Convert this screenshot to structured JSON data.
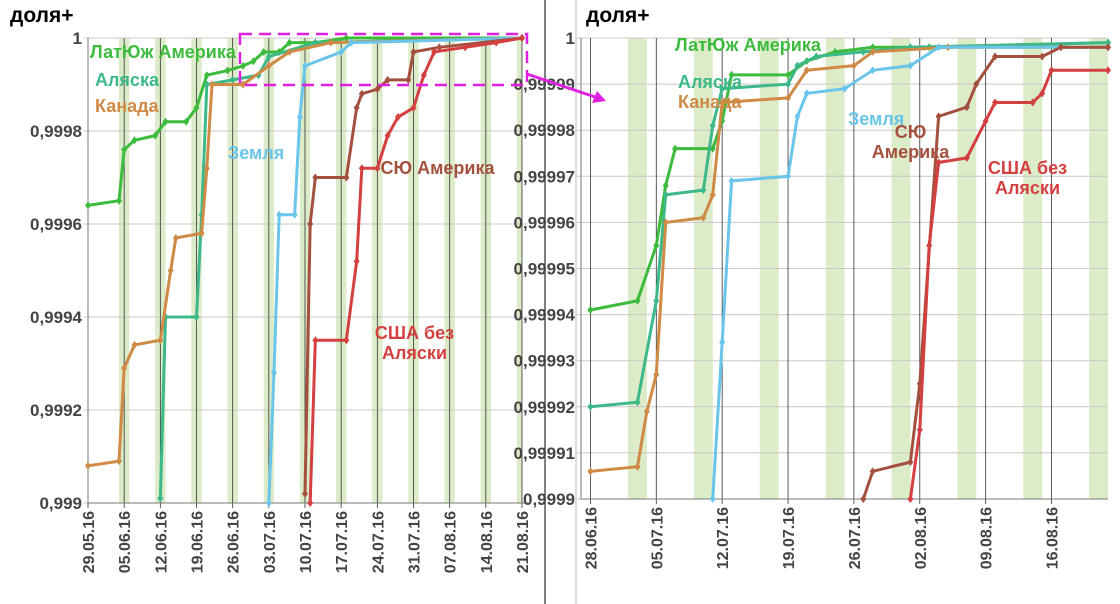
{
  "chart_data": [
    {
      "type": "line",
      "ylabel": "доля+",
      "xlim": [
        "2016-05-29",
        "2016-08-21"
      ],
      "ylim": [
        0.999,
        1
      ],
      "yticks": [
        {
          "value": 0.999,
          "label": "0,999"
        },
        {
          "value": 0.9992,
          "label": "0,9992"
        },
        {
          "value": 0.9994,
          "label": "0,9994"
        },
        {
          "value": 0.9996,
          "label": "0,9996"
        },
        {
          "value": 0.9998,
          "label": "0,9998"
        },
        1
      ],
      "xticks": [
        {
          "value": "2016-05-29",
          "label": "29.05.16"
        },
        {
          "value": "2016-06-05",
          "label": "05.06.16"
        },
        {
          "value": "2016-06-12",
          "label": "12.06.16"
        },
        {
          "value": "2016-06-19",
          "label": "19.06.16"
        },
        {
          "value": "2016-06-26",
          "label": "26.06.16"
        },
        {
          "value": "2016-07-03",
          "label": "03.07.16"
        },
        {
          "value": "2016-07-10",
          "label": "10.07.16"
        },
        {
          "value": "2016-07-17",
          "label": "17.07.16"
        },
        {
          "value": "2016-07-24",
          "label": "24.07.16"
        },
        {
          "value": "2016-07-31",
          "label": "31.07.16"
        },
        {
          "value": "2016-08-07",
          "label": "07.08.16"
        },
        {
          "value": "2016-08-14",
          "label": "14.08.16"
        },
        {
          "value": "2016-08-21",
          "label": "21.08.16"
        }
      ],
      "grid": true,
      "series": [
        {
          "name": "ЛатЮж Америка",
          "color": "#3dbb3d",
          "x": [
            "2016-05-29",
            "2016-06-04",
            "2016-06-05",
            "2016-06-07",
            "2016-06-11",
            "2016-06-13",
            "2016-06-17",
            "2016-06-19",
            "2016-06-21",
            "2016-06-25",
            "2016-06-28",
            "2016-06-30",
            "2016-07-02",
            "2016-07-05",
            "2016-07-07",
            "2016-07-12",
            "2016-07-18",
            "2016-08-21"
          ],
          "values": [
            0.99964,
            0.99965,
            0.99976,
            0.99978,
            0.99979,
            0.99982,
            0.99982,
            0.99985,
            0.99992,
            0.99993,
            0.99994,
            0.99995,
            0.99997,
            0.99997,
            0.99999,
            0.99999,
            1.0,
            1.0
          ]
        },
        {
          "name": "Аляска",
          "color": "#3db888",
          "x": [
            "2016-06-12",
            "2016-06-13",
            "2016-06-19",
            "2016-06-20",
            "2016-06-21",
            "2016-06-26",
            "2016-07-01",
            "2016-07-03",
            "2016-07-12",
            "2016-08-21"
          ],
          "values": [
            0.99901,
            0.9994,
            0.9994,
            0.99962,
            0.9999,
            0.99991,
            0.99992,
            0.99996,
            0.99999,
            1.0
          ]
        },
        {
          "name": "Канада",
          "color": "#cf8a45",
          "x": [
            "2016-05-29",
            "2016-06-04",
            "2016-06-05",
            "2016-06-07",
            "2016-06-12",
            "2016-06-14",
            "2016-06-15",
            "2016-06-20",
            "2016-06-21",
            "2016-06-22",
            "2016-06-28",
            "2016-07-03",
            "2016-07-07",
            "2016-07-15",
            "2016-08-21"
          ],
          "values": [
            0.99908,
            0.99909,
            0.99929,
            0.99934,
            0.99935,
            0.9995,
            0.99957,
            0.99958,
            0.99972,
            0.9999,
            0.9999,
            0.99994,
            0.99997,
            0.99999,
            1.0
          ]
        },
        {
          "name": "Земля",
          "color": "#6ac5ea",
          "x": [
            "2016-07-03",
            "2016-07-04",
            "2016-07-05",
            "2016-07-08",
            "2016-07-09",
            "2016-07-10",
            "2016-07-17",
            "2016-07-19",
            "2016-08-21"
          ],
          "values": [
            0.999,
            0.99928,
            0.99962,
            0.99962,
            0.99983,
            0.99994,
            0.99997,
            0.99999,
            1.0
          ]
        },
        {
          "name": "СЮ Америка",
          "color": "#a4503e",
          "x": [
            "2016-07-10",
            "2016-07-11",
            "2016-07-12",
            "2016-07-18",
            "2016-07-20",
            "2016-07-21",
            "2016-07-24",
            "2016-07-26",
            "2016-07-30",
            "2016-07-31",
            "2016-08-05",
            "2016-08-21"
          ],
          "values": [
            0.99902,
            0.9996,
            0.9997,
            0.9997,
            0.99985,
            0.99988,
            0.99989,
            0.99991,
            0.99991,
            0.99997,
            0.99998,
            1.0
          ]
        },
        {
          "name": "США без Аляски",
          "color": "#d43f3f",
          "x": [
            "2016-07-11",
            "2016-07-12",
            "2016-07-18",
            "2016-07-20",
            "2016-07-21",
            "2016-07-24",
            "2016-07-26",
            "2016-07-28",
            "2016-07-31",
            "2016-08-02",
            "2016-08-04",
            "2016-08-10",
            "2016-08-16",
            "2016-08-21"
          ],
          "values": [
            0.999,
            0.99935,
            0.99935,
            0.99952,
            0.99972,
            0.99972,
            0.99979,
            0.99983,
            0.99985,
            0.99992,
            0.99997,
            0.99998,
            0.99999,
            1.0
          ]
        }
      ]
    },
    {
      "type": "line",
      "ylabel": "доля+",
      "xlim": [
        "2016-06-27",
        "2016-08-22"
      ],
      "ylim": [
        0.9999,
        1
      ],
      "yticks": [
        {
          "value": 0.9999,
          "label": "0,9999"
        },
        {
          "value": 0.99991,
          "label": "0,99991"
        },
        {
          "value": 0.99992,
          "label": "0,99992"
        },
        {
          "value": 0.99993,
          "label": "0,99993"
        },
        {
          "value": 0.99994,
          "label": "0,99994"
        },
        {
          "value": 0.99995,
          "label": "0,99995"
        },
        {
          "value": 0.99996,
          "label": "0,99996"
        },
        {
          "value": 0.99997,
          "label": "0,99997"
        },
        {
          "value": 0.99998,
          "label": "0,99998"
        },
        {
          "value": 0.99999,
          "label": "0,99999"
        },
        1
      ],
      "xticks": [
        {
          "value": "2016-06-28",
          "label": "28.06.16"
        },
        {
          "value": "2016-07-05",
          "label": "05.07.16"
        },
        {
          "value": "2016-07-12",
          "label": "12.07.16"
        },
        {
          "value": "2016-07-19",
          "label": "19.07.16"
        },
        {
          "value": "2016-07-26",
          "label": "26.07.16"
        },
        {
          "value": "2016-08-02",
          "label": "02.08.16"
        },
        {
          "value": "2016-08-09",
          "label": "09.08.16"
        },
        {
          "value": "2016-08-16",
          "label": "16.08.16"
        }
      ],
      "grid": true,
      "series": [
        {
          "name": "ЛатЮж Америка",
          "color": "#3dbb3d",
          "x": [
            "2016-06-28",
            "2016-07-03",
            "2016-07-05",
            "2016-07-06",
            "2016-07-07",
            "2016-07-11",
            "2016-07-12",
            "2016-07-13",
            "2016-07-19",
            "2016-07-21",
            "2016-07-24",
            "2016-07-28",
            "2016-08-03",
            "2016-08-22"
          ],
          "values": [
            0.999941,
            0.999943,
            0.999955,
            0.999968,
            0.999976,
            0.999976,
            0.999982,
            0.999992,
            0.999992,
            0.999995,
            0.999997,
            0.999998,
            0.999998,
            0.999999
          ]
        },
        {
          "name": "Аляска",
          "color": "#3db888",
          "x": [
            "2016-06-28",
            "2016-07-03",
            "2016-07-05",
            "2016-07-06",
            "2016-07-10",
            "2016-07-11",
            "2016-07-12",
            "2016-07-19",
            "2016-07-20",
            "2016-07-22",
            "2016-07-27",
            "2016-08-01",
            "2016-08-22"
          ],
          "values": [
            0.99992,
            0.999921,
            0.999943,
            0.999966,
            0.999967,
            0.999981,
            0.999989,
            0.99999,
            0.999994,
            0.999996,
            0.999997,
            0.999998,
            0.999999
          ]
        },
        {
          "name": "Канада",
          "color": "#cf8a45",
          "x": [
            "2016-06-28",
            "2016-07-03",
            "2016-07-04",
            "2016-07-05",
            "2016-07-06",
            "2016-07-10",
            "2016-07-11",
            "2016-07-12",
            "2016-07-19",
            "2016-07-21",
            "2016-07-26",
            "2016-07-28",
            "2016-08-05",
            "2016-08-22"
          ],
          "values": [
            0.999906,
            0.999907,
            0.999919,
            0.999927,
            0.99996,
            0.999961,
            0.999966,
            0.999986,
            0.999987,
            0.999993,
            0.999994,
            0.999997,
            0.999998,
            0.999998
          ]
        },
        {
          "name": "Земля",
          "color": "#6ac5ea",
          "x": [
            "2016-07-11",
            "2016-07-12",
            "2016-07-13",
            "2016-07-19",
            "2016-07-20",
            "2016-07-21",
            "2016-07-25",
            "2016-07-28",
            "2016-08-01",
            "2016-08-04",
            "2016-08-22"
          ],
          "values": [
            0.9999,
            0.999934,
            0.999969,
            0.99997,
            0.999983,
            0.999988,
            0.999989,
            0.999993,
            0.999994,
            0.999998,
            0.999998
          ]
        },
        {
          "name": "СЮ Америка",
          "color": "#a4503e",
          "x": [
            "2016-07-27",
            "2016-07-28",
            "2016-08-01",
            "2016-08-02",
            "2016-08-04",
            "2016-08-07",
            "2016-08-08",
            "2016-08-10",
            "2016-08-15",
            "2016-08-17",
            "2016-08-22"
          ],
          "values": [
            0.9999,
            0.999906,
            0.999908,
            0.999925,
            0.999983,
            0.999985,
            0.99999,
            0.999996,
            0.999996,
            0.999998,
            0.999998
          ]
        },
        {
          "name": "США без Аляски",
          "color": "#d43f3f",
          "x": [
            "2016-08-01",
            "2016-08-02",
            "2016-08-03",
            "2016-08-04",
            "2016-08-07",
            "2016-08-09",
            "2016-08-10",
            "2016-08-14",
            "2016-08-15",
            "2016-08-16",
            "2016-08-22"
          ],
          "values": [
            0.9999,
            0.999915,
            0.999955,
            0.999973,
            0.999974,
            0.999982,
            0.999986,
            0.999986,
            0.999988,
            0.999993,
            0.999993
          ]
        }
      ]
    }
  ]
}
